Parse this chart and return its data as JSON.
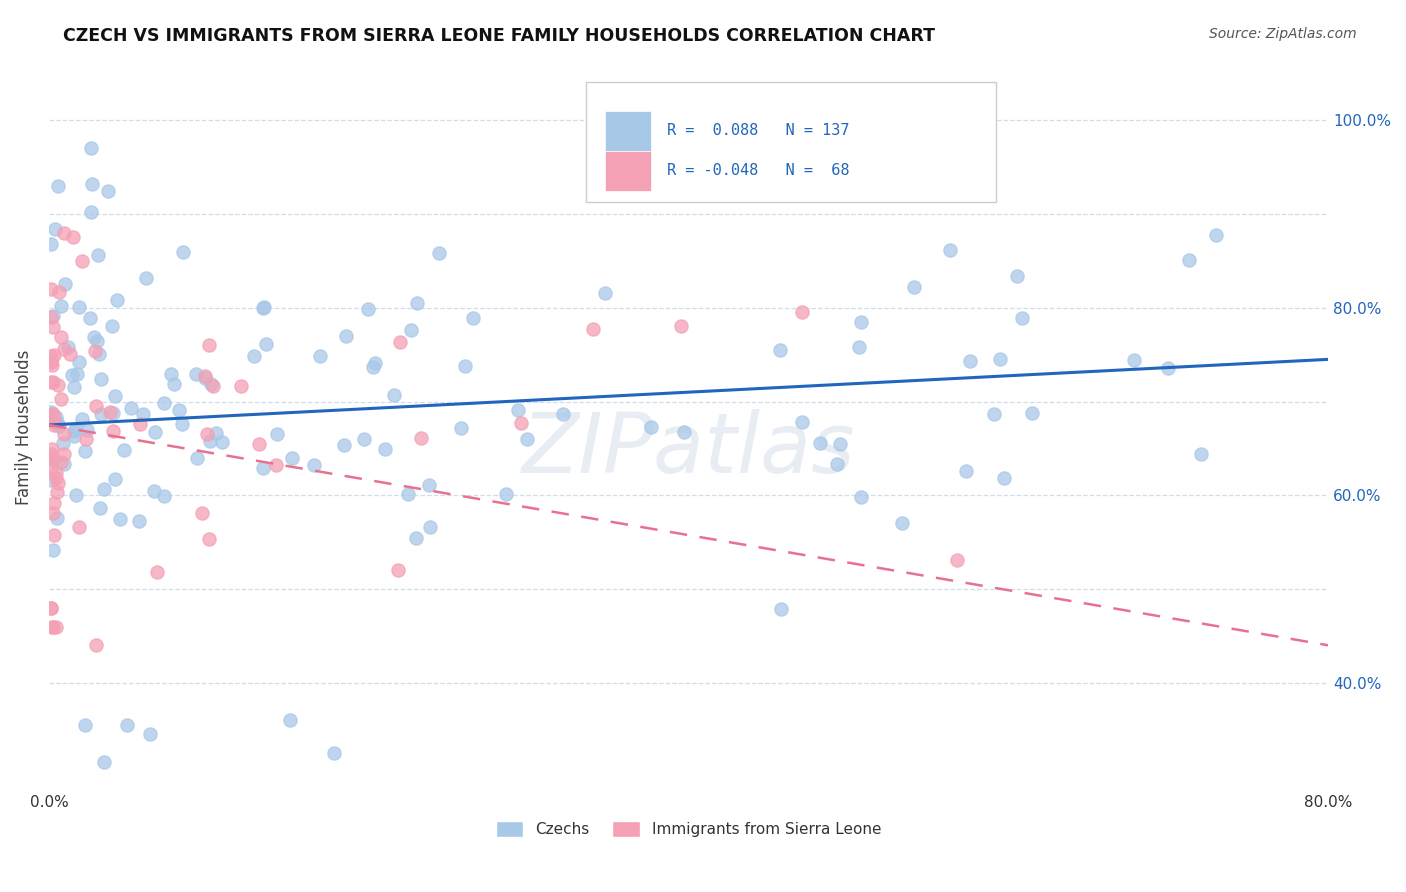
{
  "title": "CZECH VS IMMIGRANTS FROM SIERRA LEONE FAMILY HOUSEHOLDS CORRELATION CHART",
  "source": "Source: ZipAtlas.com",
  "ylabel": "Family Households",
  "xlim": [
    0.0,
    0.8
  ],
  "ylim": [
    0.285,
    1.06
  ],
  "R_czech": 0.088,
  "N_czech": 137,
  "R_sierra": -0.048,
  "N_sierra": 68,
  "czechs_color": "#a8c8e8",
  "sierra_color": "#f4a0b5",
  "trend_czech_color": "#2266bb",
  "trend_sierra_color": "#e87090",
  "background_color": "#ffffff",
  "watermark": "ZIPatlas",
  "legend_label_czech": "Czechs",
  "legend_label_sierra": "Immigrants from Sierra Leone",
  "czech_trend_start": 0.675,
  "czech_trend_end": 0.745,
  "sierra_trend_start": 0.675,
  "sierra_trend_end": 0.44,
  "ytick_positions": [
    0.4,
    0.5,
    0.6,
    0.7,
    0.8,
    0.9,
    1.0
  ],
  "ytick_labels_right": [
    "40.0%",
    "",
    "60.0%",
    "",
    "80.0%",
    "",
    "100.0%"
  ],
  "grid_color": "#c8d8e8",
  "grid_style": "--",
  "right_axis_color": "#2266bb"
}
